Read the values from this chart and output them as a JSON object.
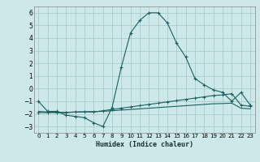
{
  "xlabel": "Humidex (Indice chaleur)",
  "bg_color": "#cde8e8",
  "grid_color": "#a8cccc",
  "line_color": "#1a6060",
  "xlim": [
    -0.5,
    23.5
  ],
  "ylim": [
    -3.5,
    6.5
  ],
  "xticks": [
    0,
    1,
    2,
    3,
    4,
    5,
    6,
    7,
    8,
    9,
    10,
    11,
    12,
    13,
    14,
    15,
    16,
    17,
    18,
    19,
    20,
    21,
    22,
    23
  ],
  "yticks": [
    -3,
    -2,
    -1,
    0,
    1,
    2,
    3,
    4,
    5,
    6
  ],
  "series1_x": [
    0,
    1,
    2,
    3,
    4,
    5,
    6,
    7,
    8,
    9,
    10,
    11,
    12,
    13,
    14,
    15,
    16,
    17,
    18,
    19,
    20,
    21,
    22,
    23
  ],
  "series1_y": [
    -1.0,
    -1.8,
    -1.8,
    -2.1,
    -2.2,
    -2.3,
    -2.7,
    -3.0,
    -1.5,
    1.7,
    4.4,
    5.4,
    6.0,
    6.0,
    5.2,
    3.6,
    2.5,
    0.8,
    0.3,
    -0.1,
    -0.3,
    -1.0,
    -0.3,
    -1.3
  ],
  "series2_x": [
    0,
    1,
    2,
    3,
    4,
    5,
    6,
    7,
    8,
    9,
    10,
    11,
    12,
    13,
    14,
    15,
    16,
    17,
    18,
    19,
    20,
    21,
    22,
    23
  ],
  "series2_y": [
    -1.8,
    -1.85,
    -1.87,
    -1.88,
    -1.85,
    -1.83,
    -1.82,
    -1.8,
    -1.75,
    -1.7,
    -1.65,
    -1.6,
    -1.55,
    -1.5,
    -1.45,
    -1.4,
    -1.35,
    -1.3,
    -1.25,
    -1.2,
    -1.18,
    -1.15,
    -1.55,
    -1.6
  ],
  "series3_x": [
    0,
    1,
    2,
    3,
    4,
    5,
    6,
    7,
    8,
    9,
    10,
    11,
    12,
    13,
    14,
    15,
    16,
    17,
    18,
    19,
    20,
    21,
    22,
    23
  ],
  "series3_y": [
    -1.9,
    -1.9,
    -1.9,
    -1.9,
    -1.85,
    -1.85,
    -1.85,
    -1.75,
    -1.65,
    -1.55,
    -1.45,
    -1.35,
    -1.25,
    -1.15,
    -1.05,
    -0.95,
    -0.85,
    -0.75,
    -0.65,
    -0.55,
    -0.5,
    -0.4,
    -1.3,
    -1.4
  ]
}
